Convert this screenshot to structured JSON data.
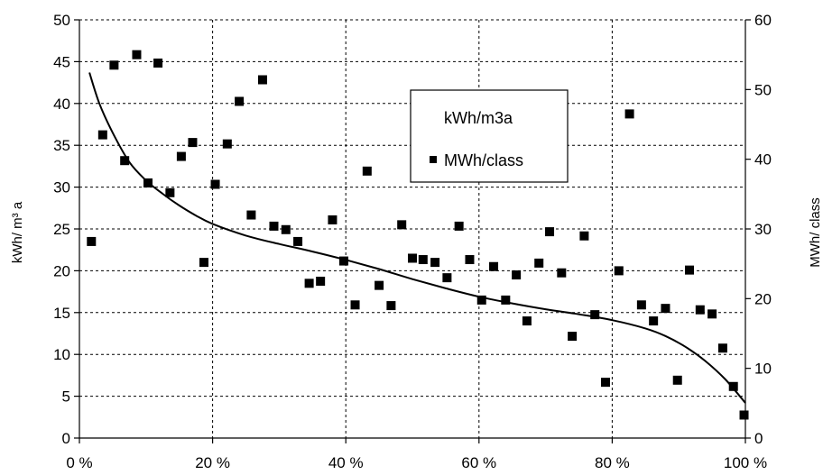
{
  "chart_data": {
    "type": "scatter",
    "x_axis": {
      "range": [
        0,
        100
      ],
      "ticks": [
        0,
        20,
        40,
        60,
        80,
        100
      ],
      "tick_labels": [
        "0 %",
        "20 %",
        "40 %",
        "60 %",
        "80 %",
        "100 %"
      ]
    },
    "y_left": {
      "label": "kWh/ m³ a",
      "range": [
        0,
        50
      ],
      "ticks": [
        0,
        5,
        10,
        15,
        20,
        25,
        30,
        35,
        40,
        45,
        50
      ],
      "tick_labels": [
        "0",
        "5",
        "10",
        "15",
        "20",
        "25",
        "30",
        "35",
        "40",
        "45",
        "50"
      ]
    },
    "y_right": {
      "label": "MWh/ class",
      "range": [
        0,
        60
      ],
      "ticks": [
        0,
        10,
        20,
        30,
        40,
        50,
        60
      ],
      "tick_labels": [
        "0",
        "10",
        "20",
        "30",
        "40",
        "50",
        "60"
      ]
    },
    "grid": true,
    "legend": {
      "placement": "upper-center-right",
      "entries": [
        "kWh/m3a",
        "MWh/class"
      ]
    },
    "series": [
      {
        "name": "kWh/m3a",
        "type": "line",
        "axis": "left",
        "color": "#000000",
        "points": [
          [
            1.5,
            43.7
          ],
          [
            3,
            40
          ],
          [
            5,
            36.5
          ],
          [
            7.5,
            33
          ],
          [
            10,
            30.8
          ],
          [
            12.5,
            29.2
          ],
          [
            15,
            27.8
          ],
          [
            17.5,
            26.6
          ],
          [
            20,
            25.6
          ],
          [
            25,
            24.2
          ],
          [
            30,
            23.2
          ],
          [
            35,
            22.3
          ],
          [
            40,
            21.3
          ],
          [
            45,
            20.2
          ],
          [
            50,
            19
          ],
          [
            55,
            17.9
          ],
          [
            60,
            16.9
          ],
          [
            65,
            16.1
          ],
          [
            70,
            15.4
          ],
          [
            75,
            14.8
          ],
          [
            80,
            14.1
          ],
          [
            85,
            13.1
          ],
          [
            88,
            12.2
          ],
          [
            91,
            10.9
          ],
          [
            94,
            9.2
          ],
          [
            97,
            7
          ],
          [
            100,
            4.2
          ]
        ]
      },
      {
        "name": "MWh/class",
        "type": "scatter",
        "axis": "right",
        "marker": "square",
        "color": "#000000",
        "points": [
          [
            1.8,
            28.2
          ],
          [
            3.5,
            43.5
          ],
          [
            5.2,
            53.5
          ],
          [
            6.8,
            39.8
          ],
          [
            8.6,
            55
          ],
          [
            10.3,
            36.6
          ],
          [
            11.8,
            53.8
          ],
          [
            13.6,
            35.2
          ],
          [
            15.3,
            40.4
          ],
          [
            17,
            42.4
          ],
          [
            18.7,
            25.2
          ],
          [
            20.4,
            36.4
          ],
          [
            22.2,
            42.2
          ],
          [
            24,
            48.3
          ],
          [
            25.8,
            32
          ],
          [
            27.5,
            51.4
          ],
          [
            29.2,
            30.4
          ],
          [
            31,
            29.9
          ],
          [
            32.8,
            28.2
          ],
          [
            34.5,
            22.2
          ],
          [
            36.2,
            22.5
          ],
          [
            38,
            31.3
          ],
          [
            39.7,
            25.4
          ],
          [
            41.4,
            19.1
          ],
          [
            43.2,
            38.3
          ],
          [
            45,
            21.9
          ],
          [
            46.8,
            19
          ],
          [
            48.4,
            30.6
          ],
          [
            50,
            25.8
          ],
          [
            51.6,
            25.6
          ],
          [
            53.4,
            25.2
          ],
          [
            55.2,
            23
          ],
          [
            57,
            30.4
          ],
          [
            58.6,
            25.6
          ],
          [
            60.4,
            19.8
          ],
          [
            62.2,
            24.6
          ],
          [
            64,
            19.8
          ],
          [
            65.6,
            23.4
          ],
          [
            67.2,
            16.8
          ],
          [
            69,
            25.1
          ],
          [
            70.6,
            29.6
          ],
          [
            72.4,
            23.7
          ],
          [
            74,
            14.6
          ],
          [
            75.8,
            29
          ],
          [
            77.4,
            17.7
          ],
          [
            79,
            8
          ],
          [
            81,
            24
          ],
          [
            82.6,
            46.5
          ],
          [
            84.4,
            19.1
          ],
          [
            86.2,
            16.8
          ],
          [
            88,
            18.6
          ],
          [
            89.8,
            8.3
          ],
          [
            91.6,
            24.1
          ],
          [
            93.2,
            18.4
          ],
          [
            95,
            17.8
          ],
          [
            96.6,
            12.9
          ],
          [
            98.2,
            7.4
          ],
          [
            99.8,
            3.3
          ]
        ]
      }
    ]
  }
}
